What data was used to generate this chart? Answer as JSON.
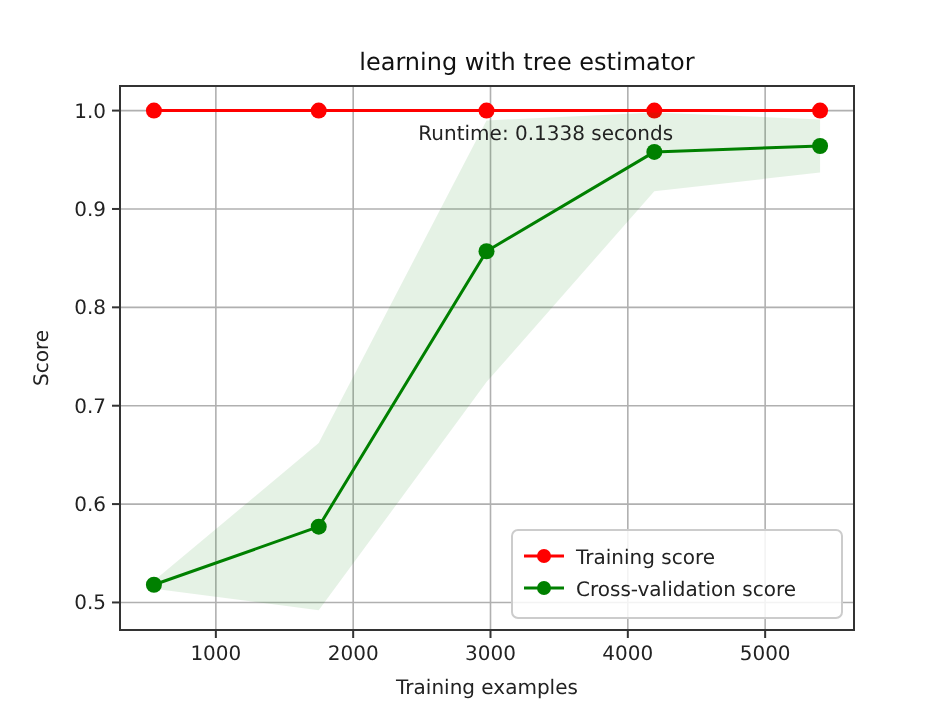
{
  "chart_data": {
    "type": "line",
    "title": "learning with tree estimator",
    "xlabel": "Training examples",
    "ylabel": "Score",
    "x": [
      549,
      1749,
      2971,
      4193,
      5400
    ],
    "series": [
      {
        "name": "Training score",
        "color": "#ff0000",
        "values": [
          1.0,
          1.0,
          1.0,
          1.0,
          1.0
        ]
      },
      {
        "name": "Cross-validation score",
        "color": "#008000",
        "values": [
          0.518,
          0.577,
          0.857,
          0.958,
          0.964
        ],
        "lower": [
          0.514,
          0.492,
          0.724,
          0.918,
          0.937
        ],
        "upper": [
          0.522,
          0.662,
          0.99,
          0.998,
          0.991
        ]
      }
    ],
    "xlim": [
      302,
      5647
    ],
    "xticks": [
      1000,
      2000,
      3000,
      4000,
      5000
    ],
    "ylim": [
      0.472,
      1.025
    ],
    "yticks": [
      0.5,
      0.6,
      0.7,
      0.8,
      0.9,
      {
        "value": 1.0,
        "label": "1.0"
      }
    ],
    "annotations": [
      "Runtime: 0.1338 seconds"
    ],
    "grid": true,
    "legend": "bottom right",
    "marker": "circle",
    "line_style": "solid"
  }
}
